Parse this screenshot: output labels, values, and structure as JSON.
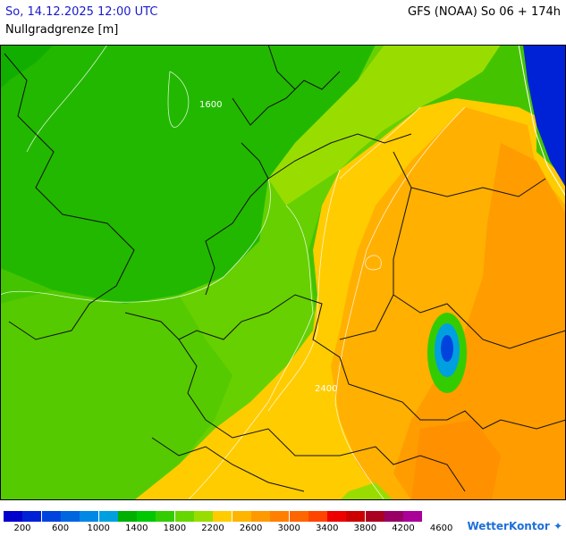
{
  "header": {
    "date": "So, 14.12.2025 12:00 UTC",
    "subtitle": "Nullgradgrenze [m]",
    "model": "GFS (NOAA) So 06 + 174h"
  },
  "map": {
    "contour_labels": [
      "1600",
      "2400"
    ]
  },
  "legend": {
    "colors": [
      "#0000cc",
      "#0022d6",
      "#0044dd",
      "#0066e0",
      "#0088e6",
      "#00a0e0",
      "#00b000",
      "#00c800",
      "#33cc00",
      "#66d600",
      "#99dd00",
      "#ffcc00",
      "#ffb400",
      "#ff9900",
      "#ff8000",
      "#ff6600",
      "#ff4400",
      "#ee0000",
      "#cc0000",
      "#aa0022",
      "#990066",
      "#aa0099"
    ],
    "labels": [
      "200",
      "600",
      "1000",
      "1400",
      "1800",
      "2200",
      "2600",
      "3000",
      "3400",
      "3800",
      "4200",
      "4600"
    ]
  },
  "brand": "WetterKontor"
}
